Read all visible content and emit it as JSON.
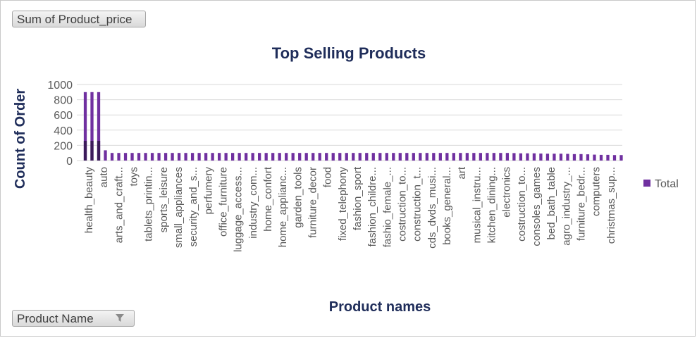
{
  "pivot": {
    "values_button": "Sum of Product_price",
    "axis_button": "Product Name",
    "axis_button_icon": "filter-dropdown-icon"
  },
  "colors": {
    "bar": "#7030a0",
    "bar_dark": "#3b1a5a",
    "title": "#1f2d5a",
    "grid": "#d9d9d9",
    "tick_text": "#595959"
  },
  "chart_data": {
    "type": "bar",
    "title": "Top Selling Products",
    "xlabel": "Product names",
    "ylabel": "Count of Order",
    "ylim": [
      0,
      1000
    ],
    "yticks": [
      0,
      200,
      400,
      600,
      800,
      1000
    ],
    "grid": true,
    "legend_position": "right",
    "visible_category_labels": [
      "health_beauty",
      "auto",
      "arts_and_craft...",
      "toys",
      "tablets_printin...",
      "sports_leisure",
      "small_appliances",
      "security_and_s...",
      "perfumery",
      "office_furniture",
      "luggage_access...",
      "industry_com...",
      "home_confort",
      "home_applianc...",
      "garden_tools",
      "furniture_decor",
      "food",
      "fixed_telephony",
      "fashion_sport",
      "fashion_childre...",
      "fashio_female_...",
      "costruction_to...",
      "construction_t...",
      "cds_dvds_musi...",
      "books_general...",
      "art",
      "musical_instru...",
      "kitchen_dining...",
      "electronics",
      "costruction_to...",
      "consoles_games",
      "bed_bath_table",
      "agro_industry_...",
      "furniture_bedr...",
      "computers",
      "christmas_sup..."
    ],
    "series": [
      {
        "name": "Total",
        "values": [
          900,
          900,
          900,
          135,
          100,
          100,
          100,
          100,
          100,
          100,
          100,
          100,
          100,
          100,
          100,
          100,
          100,
          100,
          100,
          100,
          100,
          100,
          100,
          100,
          100,
          100,
          100,
          100,
          100,
          100,
          100,
          100,
          100,
          100,
          100,
          100,
          100,
          100,
          100,
          100,
          100,
          100,
          100,
          100,
          100,
          100,
          100,
          100,
          100,
          100,
          100,
          100,
          100,
          100,
          100,
          100,
          100,
          100,
          100,
          100,
          100,
          100,
          100,
          100,
          98,
          95,
          95,
          95,
          92,
          90,
          90,
          90,
          88,
          85,
          85,
          82,
          78,
          75,
          75,
          72,
          72
        ]
      }
    ]
  }
}
